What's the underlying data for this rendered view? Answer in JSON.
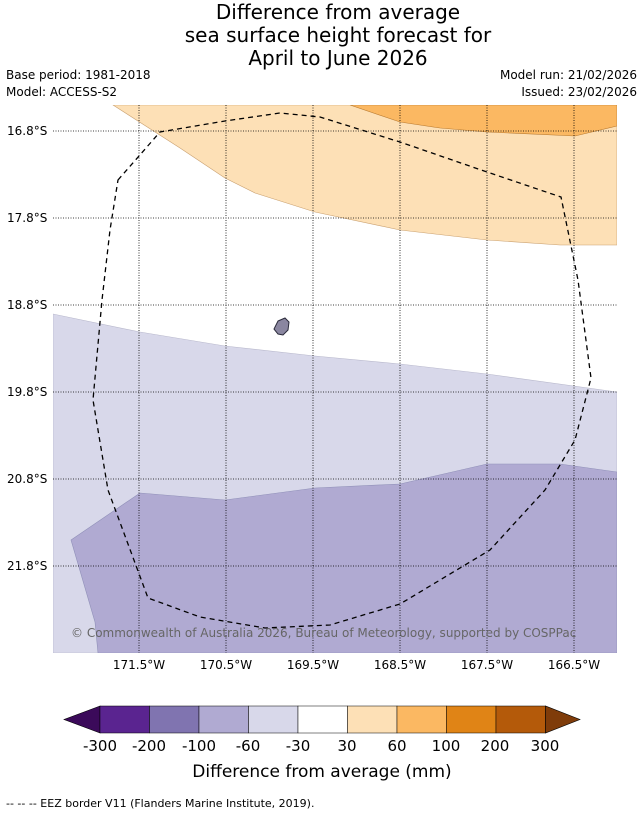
{
  "title": [
    "Difference from average",
    "sea surface height forecast for",
    "April to June 2026"
  ],
  "meta_left": [
    "Base period: 1981-2018",
    "Model: ACCESS-S2"
  ],
  "meta_right": [
    "Model run: 21/02/2026",
    "Issued: 23/02/2026"
  ],
  "lat_labels": [
    "16.8°S",
    "17.8°S",
    "18.8°S",
    "19.8°S",
    "20.8°S",
    "21.8°S"
  ],
  "lon_labels": [
    "171.5°W",
    "170.5°W",
    "169.5°W",
    "168.5°W",
    "167.5°W",
    "166.5°W"
  ],
  "copyright": "© Commonwealth of Australia 2026, Bureau of Meteorology, supported by COSPPac",
  "colorbar": {
    "ticks": [
      "-300",
      "-200",
      "-100",
      "-60",
      "-30",
      "30",
      "60",
      "100",
      "200",
      "300"
    ],
    "colors": [
      "#5a2490",
      "#8074b0",
      "#b0aad2",
      "#d8d8ea",
      "#ffffff",
      "#fde0b6",
      "#fbb862",
      "#e08416",
      "#b45a0a"
    ],
    "under_color": "#3b0a5a",
    "over_color": "#7f3c0a",
    "label": "Difference from average (mm)"
  },
  "legend": "--  --  -- EEZ border V11 (Flanders Marine Institute, 2019)."
}
